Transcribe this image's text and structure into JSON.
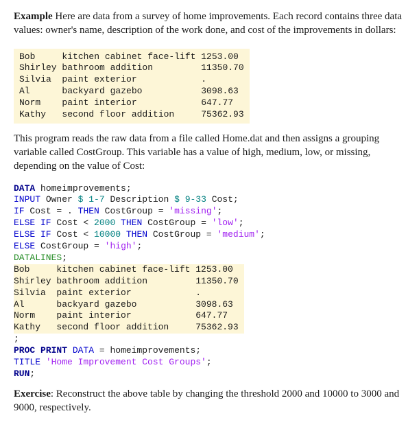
{
  "example_label": "Example",
  "example_text": " Here are data from a survey of home improvements. Each record contains three data values: owner's name, description of the work done, and cost of the improvements in dollars:",
  "data_block": "Bob     kitchen cabinet face-lift 1253.00\nShirley bathroom addition         11350.70\nSilvia  paint exterior            .\nAl      backyard gazebo           3098.63\nNorm    paint interior            647.77\nKathy   second floor addition     75362.93",
  "midpara": "This program reads the raw data from a file called Home.dat and then assigns a grouping variable called CostGroup. This variable has a value of high, medium, low, or missing, depending on the value of Cost:",
  "code": {
    "kw_data": "DATA",
    "ds_name": " homeimprovements;",
    "kw_input": "INPUT",
    "input_args": " Owner ",
    "dollar": "$",
    "input_range1": " 1-7",
    "input_desc": " Description ",
    "input_range2": " 9-33",
    "input_cost": " Cost;",
    "kw_if": "IF",
    "if1_cond": " Cost ",
    "eq": "=",
    "dot": " .",
    "kw_then": " THEN",
    "then1_assign": " CostGroup ",
    "assign_eq": "=",
    "str_missing": " 'missing'",
    "semi": ";",
    "kw_elseif": "ELSE IF",
    "if2_cond": " Cost ",
    "lt": "<",
    "if2_num": " 2000",
    "then2_assign": " CostGroup ",
    "str_low": " 'low'",
    "if3_num": " 10000",
    "then3_assign": " CostGroup ",
    "str_medium": " 'medium'",
    "kw_else": "ELSE",
    "else_assign": " CostGroup ",
    "str_high": " 'high'",
    "kw_datalines": "DATALINES",
    "datalines_data": "Bob     kitchen cabinet face-lift 1253.00\nShirley bathroom addition         11350.70\nSilvia  paint exterior            .\nAl      backyard gazebo           3098.63\nNorm    paint interior            647.77\nKathy   second floor addition     75362.93",
    "end_semi": ";",
    "kw_proc": "PROC",
    "kw_print": " PRINT",
    "kw_dataopt": " DATA",
    "print_rest": " homeimprovements;",
    "kw_title": "TITLE",
    "title_str": " 'Home Improvement Cost Groups'",
    "kw_run": "RUN"
  },
  "exercise_label": "Exercise",
  "exercise_text": ": Reconstruct the above table by changing the threshold 2000 and 10000 to 3000 and 9000, respectively."
}
